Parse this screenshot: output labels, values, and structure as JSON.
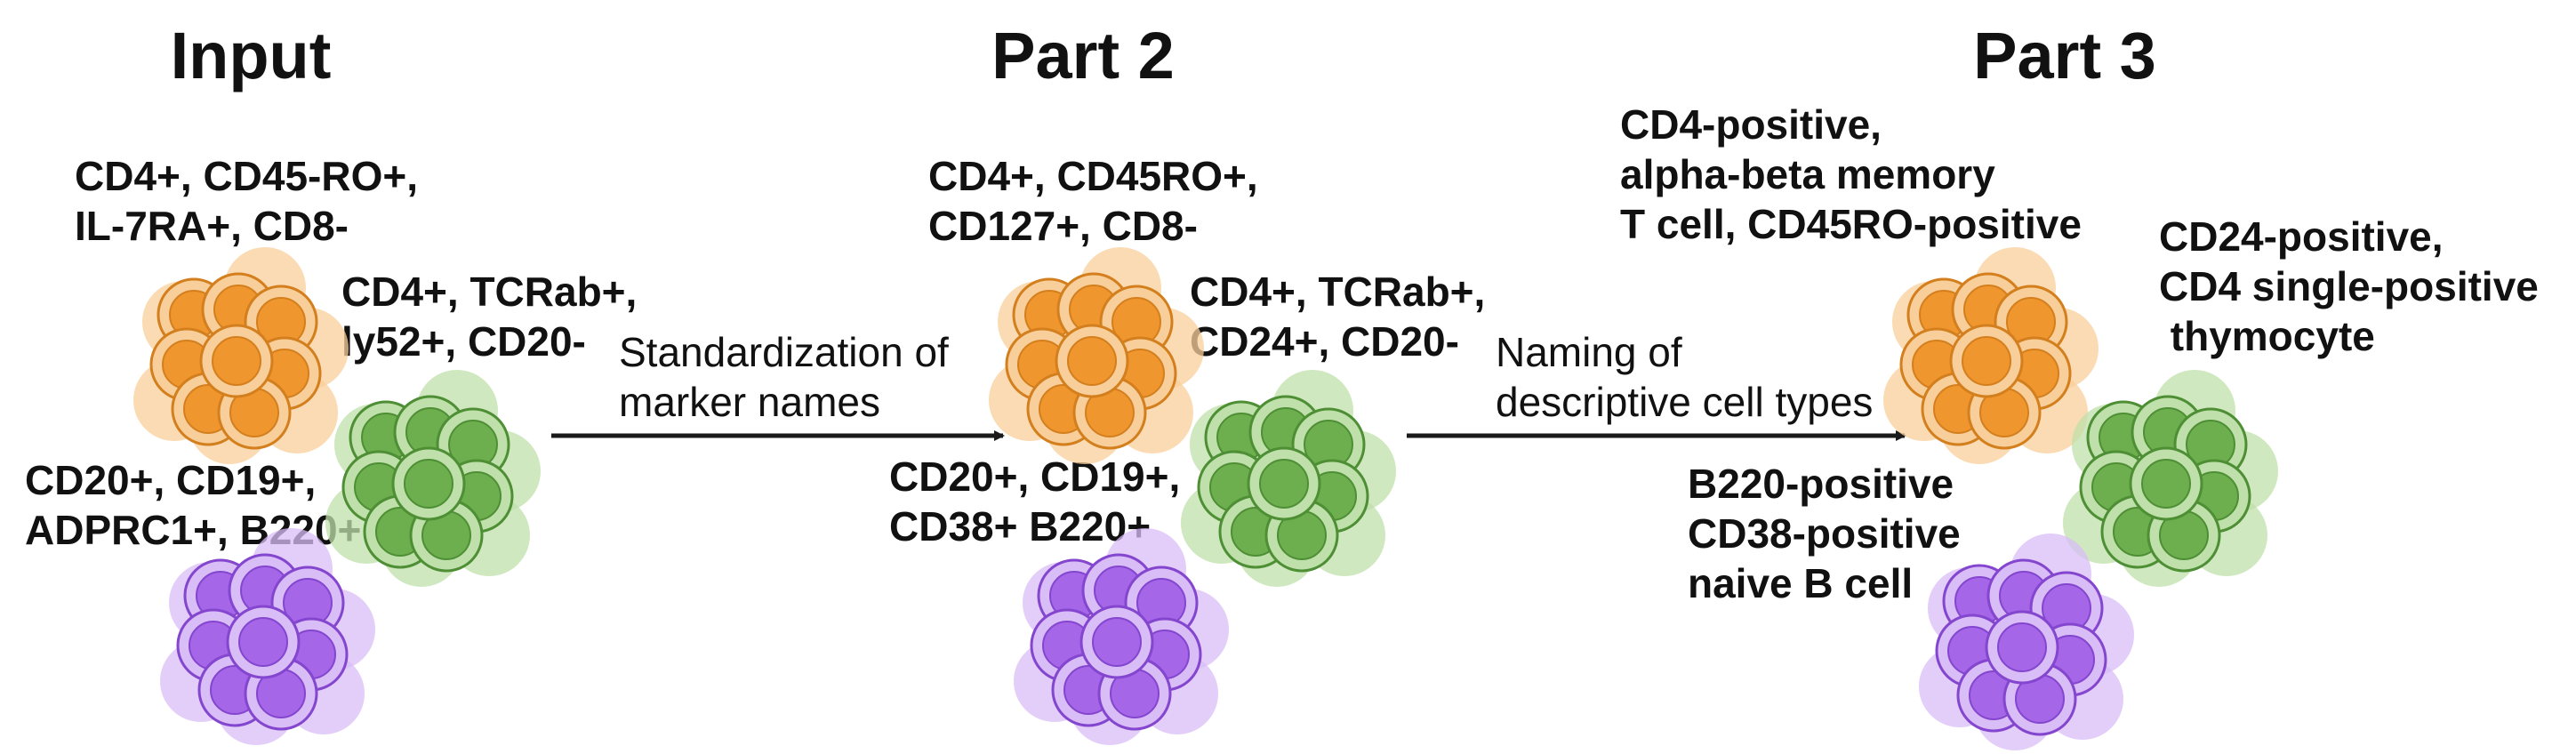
{
  "titles": {
    "input": "Input",
    "part2": "Part 2",
    "part3": "Part 3"
  },
  "arrows": {
    "standardization": [
      "Standardization of",
      "marker names"
    ],
    "naming": [
      "Naming of",
      "descriptive cell types"
    ]
  },
  "input_labels": {
    "t_memory": [
      "CD4+, CD45-RO+,",
      "IL-7RA+, CD8-"
    ],
    "thymocyte": [
      "CD4+, TCRab+,",
      "ly52+, CD20-"
    ],
    "b_cell": [
      "CD20+, CD19+,",
      "ADPRC1+, B220+"
    ]
  },
  "part2_labels": {
    "t_memory": [
      "CD4+, CD45RO+,",
      "CD127+, CD8-"
    ],
    "thymocyte": [
      "CD4+, TCRab+,",
      "CD24+, CD20-"
    ],
    "b_cell": [
      "CD20+, CD19+,",
      "CD38+ B220+"
    ]
  },
  "part3_labels": {
    "t_memory": [
      "CD4-positive,",
      "alpha-beta memory",
      "T cell, CD45RO-positive"
    ],
    "thymocyte": [
      "CD24-positive,",
      "CD4 single-positive",
      " thymocyte"
    ],
    "b_cell": [
      "B220-positive",
      "CD38-positive",
      "naive B cell"
    ]
  },
  "cluster_colors": {
    "orange": {
      "fill": "#F0962E",
      "pale": "#F8CF9A",
      "stroke": "#D47F1E"
    },
    "green": {
      "fill": "#6DAE4E",
      "pale": "#BFE0AA",
      "stroke": "#4E8F35"
    },
    "purple": {
      "fill": "#A566E8",
      "pale": "#D8BDF6",
      "stroke": "#8446CF"
    }
  }
}
